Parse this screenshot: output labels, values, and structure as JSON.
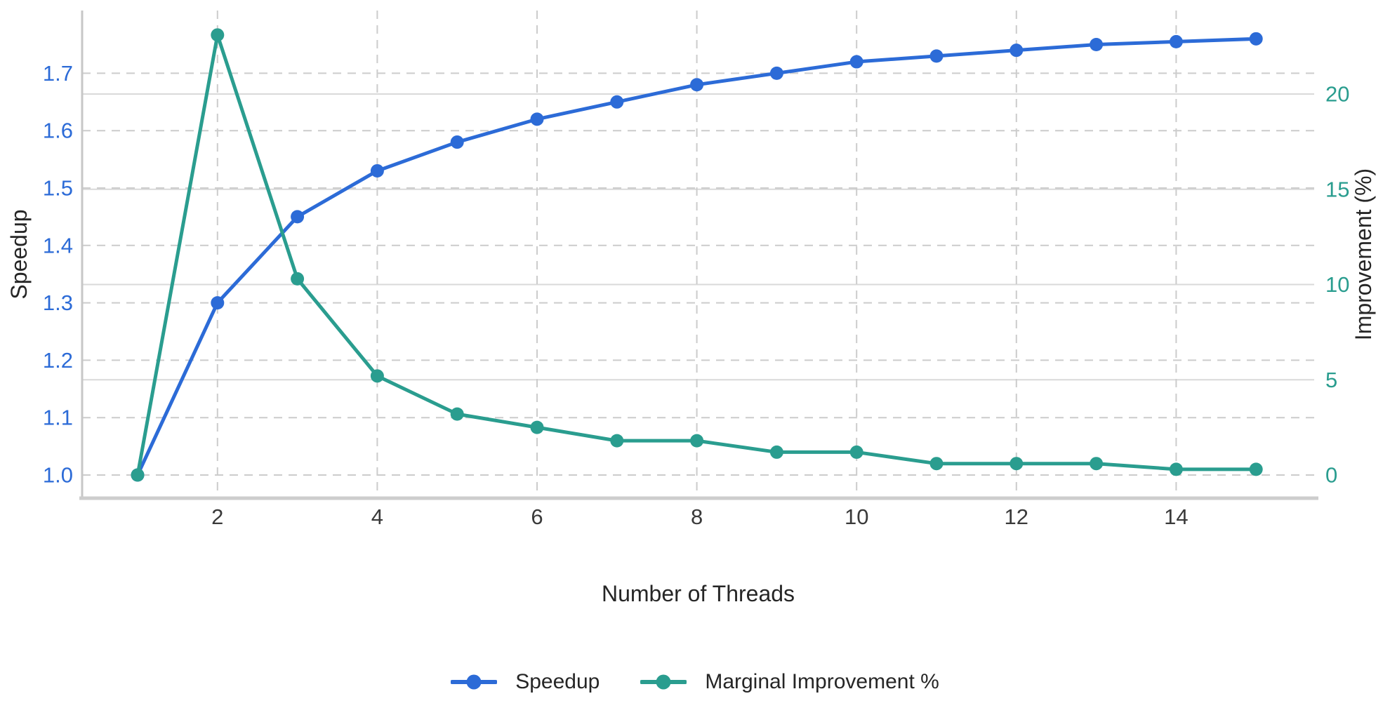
{
  "chart_data": {
    "type": "line",
    "title": "",
    "xlabel": "Number of Threads",
    "x": [
      1,
      2,
      3,
      4,
      5,
      6,
      7,
      8,
      9,
      10,
      11,
      12,
      13,
      14,
      15
    ],
    "x_ticks": [
      2,
      4,
      6,
      8,
      10,
      12,
      14
    ],
    "series": [
      {
        "name": "Speedup",
        "axis": "left",
        "color": "#2c6bd7",
        "values": [
          1.0,
          1.3,
          1.45,
          1.53,
          1.58,
          1.62,
          1.65,
          1.68,
          1.7,
          1.72,
          1.73,
          1.74,
          1.75,
          1.755,
          1.76
        ]
      },
      {
        "name": "Marginal Improvement %",
        "axis": "right",
        "color": "#2a9d8f",
        "values": [
          0,
          23.1,
          10.3,
          5.2,
          3.2,
          2.5,
          1.8,
          1.8,
          1.2,
          1.2,
          0.6,
          0.6,
          0.6,
          0.3,
          0.3
        ]
      }
    ],
    "left_axis": {
      "label": "Speedup",
      "ticks": [
        1.0,
        1.1,
        1.2,
        1.3,
        1.4,
        1.5,
        1.6,
        1.7
      ],
      "tick_color": "#2c6bd7",
      "range_note": "1.0 aligns with right-axis 0"
    },
    "right_axis": {
      "label": "Improvement (%)",
      "ticks": [
        0,
        5,
        10,
        15,
        20
      ],
      "tick_color": "#2a9d8f"
    },
    "grid": {
      "horizontal_dashed_at": "left-axis ticks",
      "horizontal_solid_at": "right-axis ticks 5-20",
      "vertical_dashed_at": "labeled x ticks"
    },
    "legend": {
      "position": "bottom-center",
      "entries": [
        "Speedup",
        "Marginal Improvement %"
      ]
    }
  },
  "styles": {
    "background": "#ffffff",
    "x_tick_color": "#3a3a3a",
    "axis_title_color": "#262626",
    "grid_dashed_color": "#cccccc",
    "grid_solid_color": "#d9d9d9",
    "spine_color": "#c7c7c7",
    "bottom_spine_color": "#cdcdcd"
  }
}
